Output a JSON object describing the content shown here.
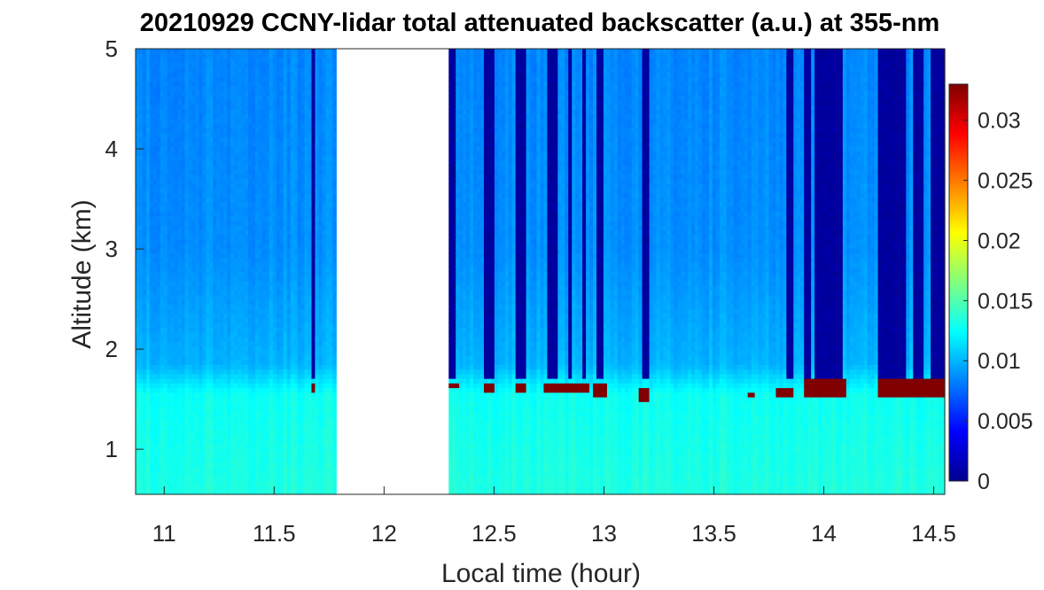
{
  "chart_data": {
    "type": "heatmap",
    "title": "20210929 CCNY-lidar total attenuated backscatter (a.u.) at 355-nm",
    "xlabel": "Local time (hour)",
    "ylabel": "Altitude (km)",
    "xlim": [
      10.87,
      14.55
    ],
    "ylim": [
      0.55,
      5.0
    ],
    "xticks": [
      11,
      11.5,
      12,
      12.5,
      13,
      13.5,
      14,
      14.5
    ],
    "xtick_labels": [
      "11",
      "11.5",
      "12",
      "12.5",
      "13",
      "13.5",
      "14",
      "14.5"
    ],
    "yticks": [
      1,
      2,
      3,
      4,
      5
    ],
    "ytick_labels": [
      "1",
      "2",
      "3",
      "4",
      "5"
    ],
    "colorbar": {
      "colormap": "jet",
      "range": [
        0,
        0.033
      ],
      "ticks": [
        0,
        0.005,
        0.01,
        0.015,
        0.02,
        0.025,
        0.03
      ],
      "tick_labels": [
        "0",
        "0.005",
        "0.01",
        "0.015",
        "0.02",
        "0.025",
        "0.03"
      ]
    },
    "data_gap": [
      11.78,
      12.29
    ],
    "low_background_profiles": [
      {
        "start": 11.67,
        "end": 11.69,
        "top": 1.72
      },
      {
        "start": 12.29,
        "end": 12.32,
        "top": 1.7
      },
      {
        "start": 12.46,
        "end": 12.5,
        "top": 1.7
      },
      {
        "start": 12.6,
        "end": 12.65,
        "top": 1.7
      },
      {
        "start": 12.75,
        "end": 12.79,
        "top": 1.7
      },
      {
        "start": 12.83,
        "end": 12.86,
        "top": 1.7
      },
      {
        "start": 12.9,
        "end": 12.92,
        "top": 1.7
      },
      {
        "start": 12.97,
        "end": 13.0,
        "top": 1.7
      },
      {
        "start": 13.17,
        "end": 13.2,
        "top": 1.7
      },
      {
        "start": 13.83,
        "end": 13.86,
        "top": 1.7
      },
      {
        "start": 13.91,
        "end": 13.94,
        "top": 1.7
      },
      {
        "start": 13.96,
        "end": 14.08,
        "top": 1.7
      },
      {
        "start": 14.25,
        "end": 14.38,
        "top": 1.7
      },
      {
        "start": 14.4,
        "end": 14.46,
        "top": 1.7
      },
      {
        "start": 14.48,
        "end": 14.55,
        "top": 1.7
      }
    ],
    "cloud_layers": [
      {
        "start": 11.67,
        "end": 11.69,
        "base": 1.58,
        "top": 1.67
      },
      {
        "start": 12.3,
        "end": 12.34,
        "base": 1.6,
        "top": 1.68
      },
      {
        "start": 12.46,
        "end": 12.5,
        "base": 1.58,
        "top": 1.67
      },
      {
        "start": 12.6,
        "end": 12.65,
        "base": 1.58,
        "top": 1.67
      },
      {
        "start": 12.72,
        "end": 12.9,
        "base": 1.55,
        "top": 1.65
      },
      {
        "start": 12.88,
        "end": 12.93,
        "base": 1.56,
        "top": 1.68
      },
      {
        "start": 12.95,
        "end": 13.02,
        "base": 1.54,
        "top": 1.66
      },
      {
        "start": 13.15,
        "end": 13.2,
        "base": 1.5,
        "top": 1.6
      },
      {
        "start": 13.66,
        "end": 13.68,
        "base": 1.52,
        "top": 1.58
      },
      {
        "start": 13.78,
        "end": 13.86,
        "base": 1.52,
        "top": 1.62
      },
      {
        "start": 13.91,
        "end": 14.1,
        "base": 1.51,
        "top": 1.7
      },
      {
        "start": 14.25,
        "end": 14.55,
        "base": 1.52,
        "top": 1.72
      }
    ]
  }
}
